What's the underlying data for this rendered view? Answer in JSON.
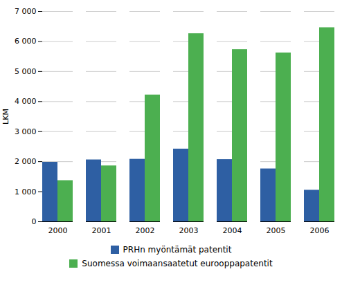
{
  "chart_data": {
    "type": "bar",
    "categories": [
      "2000",
      "2001",
      "2002",
      "2003",
      "2004",
      "2005",
      "2006"
    ],
    "series": [
      {
        "name": "PRHn myöntämät patentit",
        "color": "#2E5FA3",
        "values": [
          1980,
          2060,
          2080,
          2420,
          2070,
          1760,
          1050
        ]
      },
      {
        "name": "Suomessa voimaansaatetut eurooppapatentit",
        "color": "#4CAF50",
        "values": [
          1370,
          1860,
          4220,
          6260,
          5730,
          5620,
          6460
        ]
      }
    ],
    "ylabel": "LKM",
    "ylim": [
      0,
      7000
    ],
    "yticks": [
      0,
      {
        "value": 1000,
        "label": "1 000"
      },
      {
        "value": 2000,
        "label": "2 000"
      },
      {
        "value": 3000,
        "label": "3 000"
      },
      {
        "value": 4000,
        "label": "4 000"
      },
      {
        "value": 5000,
        "label": "5 000"
      },
      {
        "value": 6000,
        "label": "6 000"
      },
      {
        "value": 7000,
        "label": "7 000"
      }
    ],
    "grid": true,
    "legend": "bottom"
  }
}
